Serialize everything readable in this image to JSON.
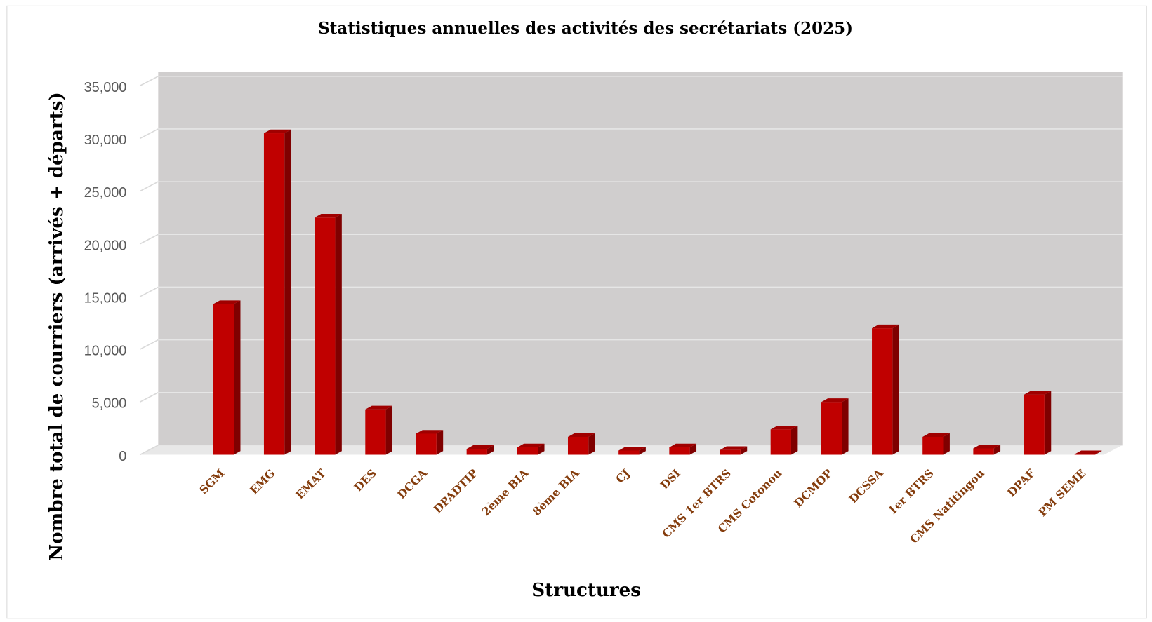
{
  "chart_data": {
    "type": "bar3d",
    "title": "Statistiques annuelles des activités des secrétariats (2025)",
    "x_label": "Structures",
    "y_label": "Nombre total de courriers (arrivés + départs)",
    "categories": [
      "SGM",
      "EMG",
      "EMAT",
      "DES",
      "DCGA",
      "DPADTIP",
      "2ème BIA",
      "8ème BIA",
      "CJ",
      "DSI",
      "CMS 1er BTRS",
      "CMS Cotonou",
      "DCMOP",
      "DCSSA",
      "1er BTRS",
      "CMS Natitingou",
      "DPAF",
      "PM SEME"
    ],
    "values": [
      14300,
      30500,
      22500,
      4300,
      2000,
      550,
      700,
      1700,
      400,
      700,
      450,
      2400,
      5000,
      12000,
      1700,
      600,
      5700,
      50
    ],
    "color": "#c00000",
    "ylim": [
      0,
      35000
    ],
    "yticks": [
      0,
      {
        "value": 5000,
        "label": "5,000"
      },
      {
        "value": 10000,
        "label": "10,000"
      },
      {
        "value": 15000,
        "label": "15,000"
      },
      {
        "value": 20000,
        "label": "20,000"
      },
      {
        "value": 25000,
        "label": "25,000"
      },
      {
        "value": 30000,
        "label": "30,000"
      },
      {
        "value": 35000,
        "label": "35,000"
      }
    ],
    "grid": true
  }
}
